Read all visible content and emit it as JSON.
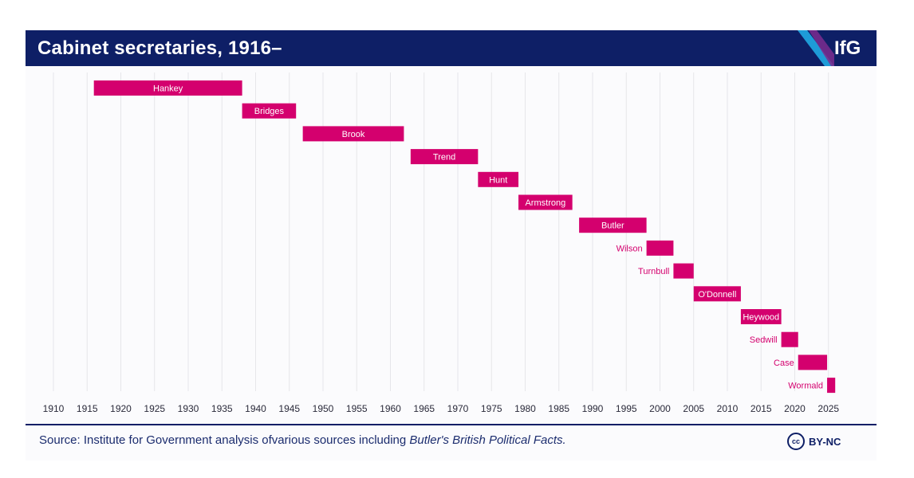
{
  "header": {
    "title": "Cabinet secretaries, 1916–",
    "logo": "IfG"
  },
  "colors": {
    "bar": "#d4006e",
    "header_bg": "#0e1f66",
    "grid": "#e6e6ea",
    "tick_text": "#2a2a3a",
    "source_text": "#1b2c6e",
    "logo_stripe": [
      "#1e9bd7",
      "#7b2d8f"
    ]
  },
  "chart_data": {
    "type": "gantt",
    "title": "Cabinet secretaries, 1916–",
    "xlabel": "",
    "ylabel": "",
    "xlim": [
      1905,
      2030
    ],
    "xticks": [
      1910,
      1915,
      1920,
      1925,
      1930,
      1935,
      1940,
      1945,
      1950,
      1955,
      1960,
      1965,
      1970,
      1975,
      1980,
      1985,
      1990,
      1995,
      2000,
      2005,
      2010,
      2015,
      2020,
      2025
    ],
    "grid": true,
    "series": [
      {
        "name": "Hankey",
        "start": 1916,
        "end": 1938
      },
      {
        "name": "Bridges",
        "start": 1938,
        "end": 1946
      },
      {
        "name": "Brook",
        "start": 1947,
        "end": 1962
      },
      {
        "name": "Trend",
        "start": 1963,
        "end": 1973
      },
      {
        "name": "Hunt",
        "start": 1973,
        "end": 1979
      },
      {
        "name": "Armstrong",
        "start": 1979,
        "end": 1987
      },
      {
        "name": "Butler",
        "start": 1988,
        "end": 1998
      },
      {
        "name": "Wilson",
        "start": 1998,
        "end": 2002
      },
      {
        "name": "Turnbull",
        "start": 2002,
        "end": 2005
      },
      {
        "name": "O'Donnell",
        "start": 2005,
        "end": 2012
      },
      {
        "name": "Heywood",
        "start": 2012,
        "end": 2018
      },
      {
        "name": "Sedwill",
        "start": 2018,
        "end": 2020.5
      },
      {
        "name": "Case",
        "start": 2020.5,
        "end": 2024.8
      },
      {
        "name": "Wormald",
        "start": 2024.8,
        "end": 2026
      }
    ]
  },
  "footer": {
    "source_prefix": "Source: Institute for Government analysis ofvarious sources including ",
    "source_italic": "Butler's British Political Facts.",
    "cc_symbol": "cc",
    "license": "BY-NC"
  }
}
